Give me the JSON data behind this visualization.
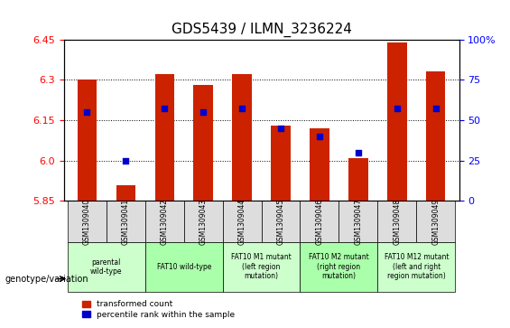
{
  "title": "GDS5439 / ILMN_3236224",
  "samples": [
    "GSM1309040",
    "GSM1309041",
    "GSM1309042",
    "GSM1309043",
    "GSM1309044",
    "GSM1309045",
    "GSM1309046",
    "GSM1309047",
    "GSM1309048",
    "GSM1309049"
  ],
  "transformed_count": [
    6.3,
    5.91,
    6.32,
    6.28,
    6.32,
    6.13,
    6.12,
    6.01,
    6.44,
    6.33
  ],
  "percentile_rank": [
    55,
    25,
    57,
    55,
    57,
    45,
    40,
    30,
    57,
    57
  ],
  "ylim": [
    5.85,
    6.45
  ],
  "ylim_right": [
    0,
    100
  ],
  "yticks_left": [
    5.85,
    6.0,
    6.15,
    6.3,
    6.45
  ],
  "yticks_right": [
    0,
    25,
    50,
    75,
    100
  ],
  "bar_color": "#CC2200",
  "dot_color": "#0000CC",
  "genotype_groups": [
    {
      "label": "parental\nwild-type",
      "start": 0,
      "end": 2,
      "color": "#CCFFCC"
    },
    {
      "label": "FAT10 wild-type",
      "start": 2,
      "end": 4,
      "color": "#AAFFAA"
    },
    {
      "label": "FAT10 M1 mutant\n(left region\nmutation)",
      "start": 4,
      "end": 6,
      "color": "#CCFFCC"
    },
    {
      "label": "FAT10 M2 mutant\n(right region\nmutation)",
      "start": 6,
      "end": 8,
      "color": "#AAFFAA"
    },
    {
      "label": "FAT10 M12 mutant\n(left and right\nregion mutation)",
      "start": 8,
      "end": 10,
      "color": "#CCFFCC"
    }
  ],
  "legend_red_label": "transformed count",
  "legend_blue_label": "percentile rank within the sample",
  "xlabel_left": "genotype/variation",
  "bar_width": 0.5
}
